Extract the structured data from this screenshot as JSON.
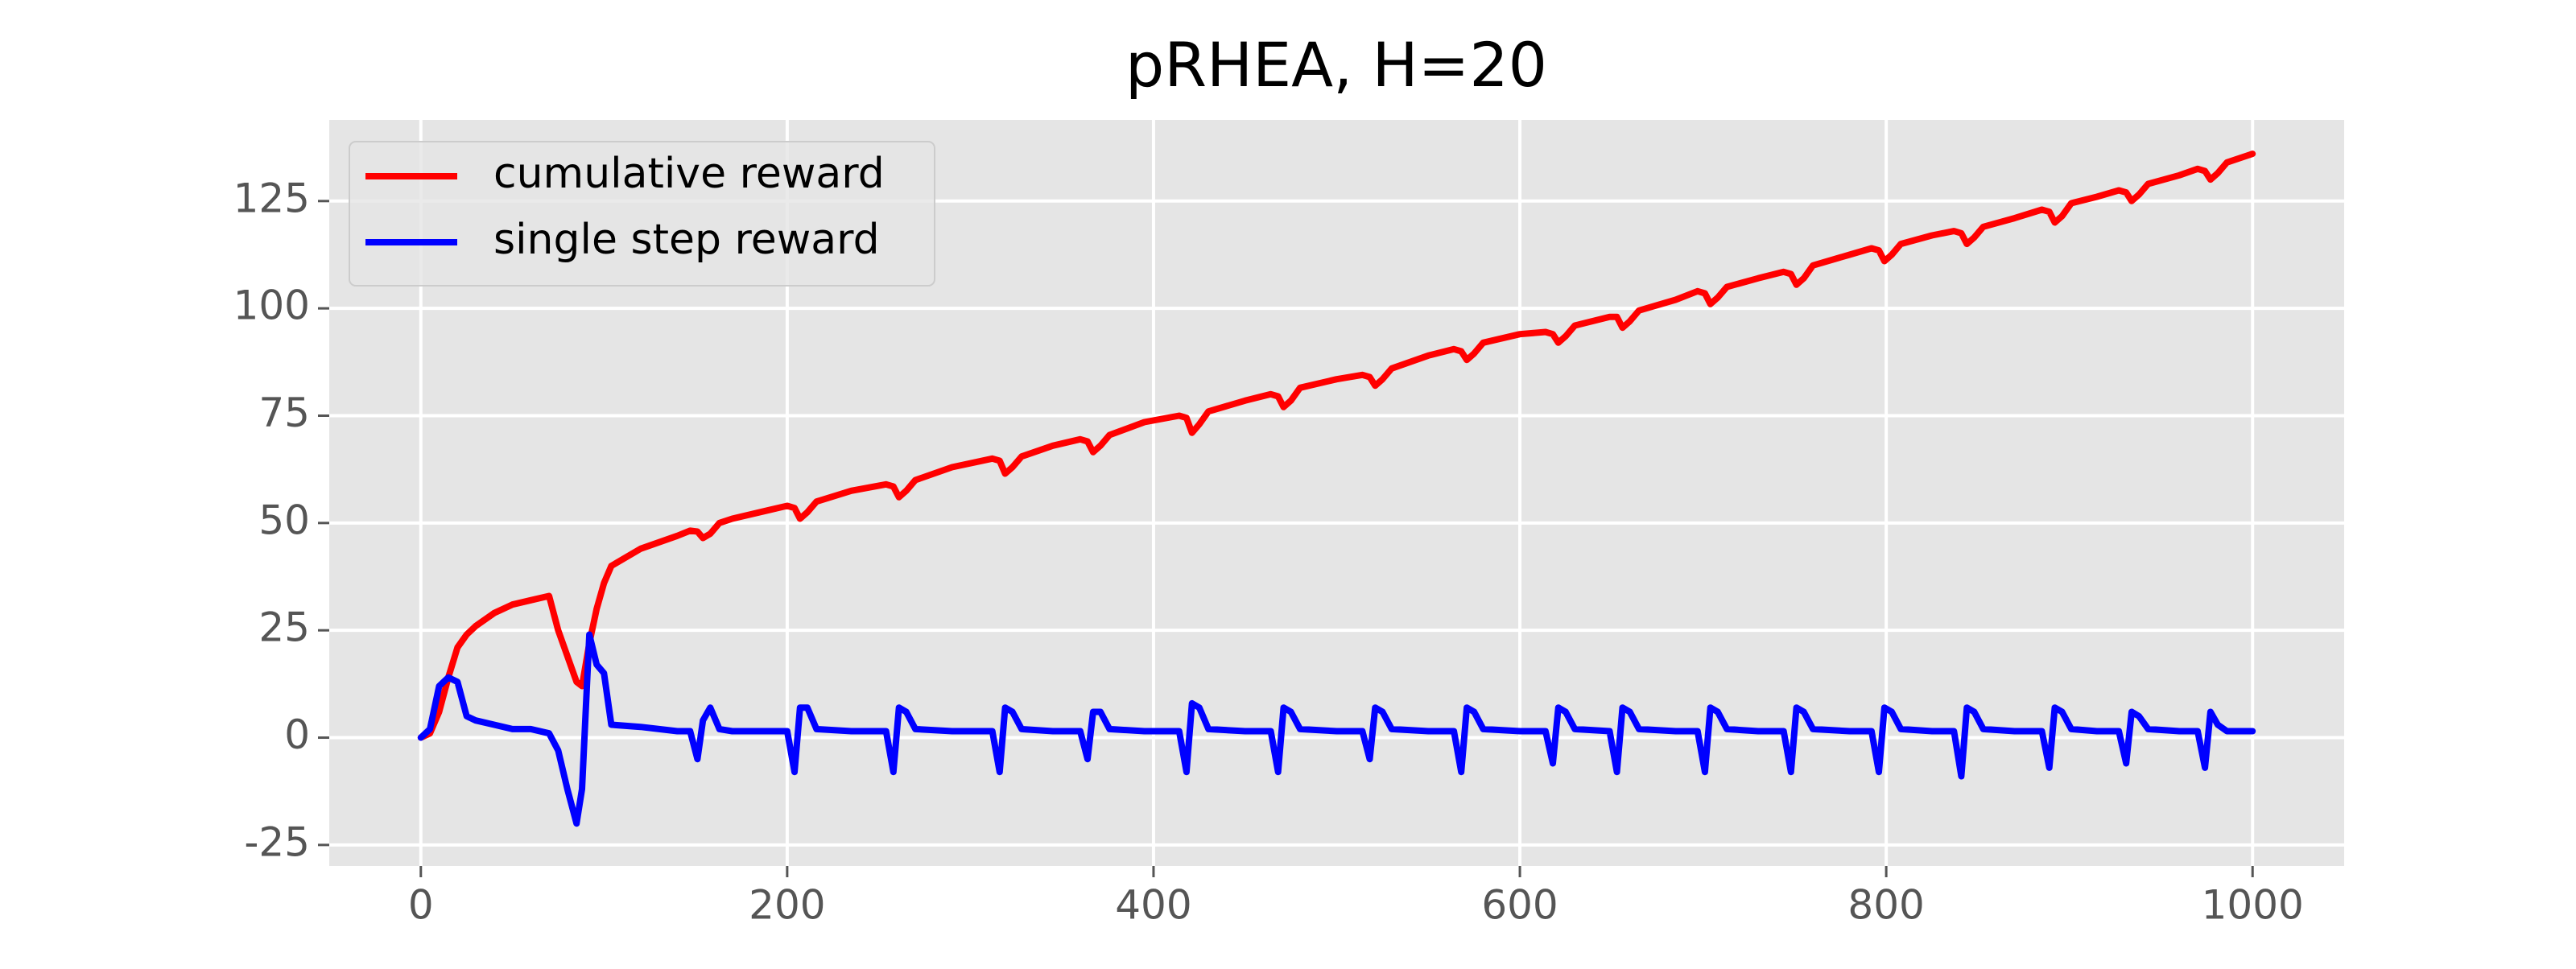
{
  "chart_data": {
    "type": "line",
    "title": "pRHEA, H=20",
    "x": [
      0,
      5,
      10,
      15,
      20,
      25,
      30,
      40,
      50,
      60,
      70,
      75,
      80,
      85,
      88,
      92,
      96,
      100,
      104,
      120,
      140,
      147,
      151,
      154,
      158,
      163,
      170,
      190,
      200,
      204,
      207,
      211,
      216,
      235,
      254,
      258,
      261,
      265,
      270,
      290,
      312,
      316,
      319,
      323,
      328,
      345,
      360,
      364,
      367,
      371,
      376,
      395,
      414,
      418,
      421,
      425,
      430,
      450,
      464,
      468,
      471,
      475,
      480,
      500,
      514,
      518,
      521,
      525,
      530,
      550,
      564,
      568,
      571,
      575,
      580,
      600,
      614,
      618,
      621,
      625,
      630,
      649,
      653,
      656,
      660,
      665,
      685,
      697,
      701,
      704,
      708,
      713,
      730,
      744,
      748,
      751,
      755,
      760,
      780,
      792,
      796,
      799,
      803,
      808,
      825,
      837,
      841,
      844,
      848,
      853,
      870,
      885,
      889,
      892,
      896,
      901,
      915,
      927,
      931,
      934,
      938,
      943,
      960,
      970,
      974,
      977,
      981,
      986,
      1000
    ],
    "series": [
      {
        "name": "cumulative reward",
        "color": "#ff0000",
        "values": [
          0,
          1,
          6,
          14,
          21,
          24,
          26,
          29,
          31,
          32,
          33,
          25,
          19,
          13,
          12,
          22,
          30,
          36,
          40,
          44,
          47,
          48.2,
          48,
          46.5,
          47.5,
          50,
          51,
          53,
          54,
          53.5,
          51,
          52.5,
          55,
          57.5,
          59,
          58.5,
          56,
          57.5,
          60,
          63,
          65,
          64.5,
          61.5,
          63,
          65.5,
          68,
          69.5,
          69,
          66.5,
          68,
          70.5,
          73.5,
          75,
          74.5,
          71,
          73,
          76,
          78.5,
          80,
          79.5,
          77,
          78.5,
          81.5,
          83.5,
          84.5,
          84,
          82,
          83.5,
          86,
          89,
          90.5,
          90,
          88,
          89.5,
          92,
          94,
          94.5,
          94,
          92,
          93.5,
          96,
          98,
          98,
          95.5,
          97,
          99.5,
          102,
          104,
          103.5,
          101,
          102.5,
          105,
          107,
          108.5,
          108,
          105.5,
          107,
          110,
          112.5,
          114,
          113.5,
          111,
          112.5,
          115,
          117,
          118,
          117.5,
          115,
          116.5,
          119,
          121,
          123,
          122.5,
          120,
          121.5,
          124.5,
          126,
          127.5,
          127,
          125,
          126.5,
          129,
          131,
          132.5,
          132,
          130,
          131.5,
          134,
          136
        ]
      },
      {
        "name": "single step reward",
        "color": "#0000ff",
        "values": [
          0,
          2,
          12,
          14,
          13,
          5,
          4,
          3,
          2,
          2,
          1,
          -3,
          -12,
          -20,
          -12,
          24,
          17,
          15,
          3,
          2.5,
          1.5,
          1.5,
          -5,
          4,
          7,
          2,
          1.5,
          1.5,
          1.5,
          -8,
          7,
          7,
          2,
          1.5,
          1.5,
          -8,
          7,
          6,
          2,
          1.5,
          1.5,
          -8,
          7,
          6,
          2,
          1.5,
          1.5,
          -5,
          6,
          6,
          2,
          1.5,
          1.5,
          -8,
          8,
          7,
          2,
          1.5,
          1.5,
          -8,
          7,
          6,
          2,
          1.5,
          1.5,
          -5,
          7,
          6,
          2,
          1.5,
          1.5,
          -8,
          7,
          6,
          2,
          1.5,
          1.5,
          -6,
          7,
          6,
          2,
          1.5,
          -8,
          7,
          6,
          2,
          1.5,
          1.5,
          -8,
          7,
          6,
          2,
          1.5,
          1.5,
          -8,
          7,
          6,
          2,
          1.5,
          1.5,
          -8,
          7,
          6,
          2,
          1.5,
          1.5,
          -9,
          7,
          6,
          2,
          1.5,
          1.5,
          -7,
          7,
          6,
          2,
          1.5,
          1.5,
          -6,
          6,
          5,
          2,
          1.5,
          1.5,
          -7,
          6,
          3,
          1.5,
          1.5
        ]
      }
    ],
    "xlim": [
      -50,
      1050
    ],
    "ylim": [
      -29.9,
      143.9
    ],
    "xticks": [
      0,
      200,
      400,
      600,
      800,
      1000
    ],
    "yticks": [
      -25,
      0,
      25,
      50,
      75,
      100,
      125
    ],
    "grid": true,
    "legend": "upper left"
  }
}
